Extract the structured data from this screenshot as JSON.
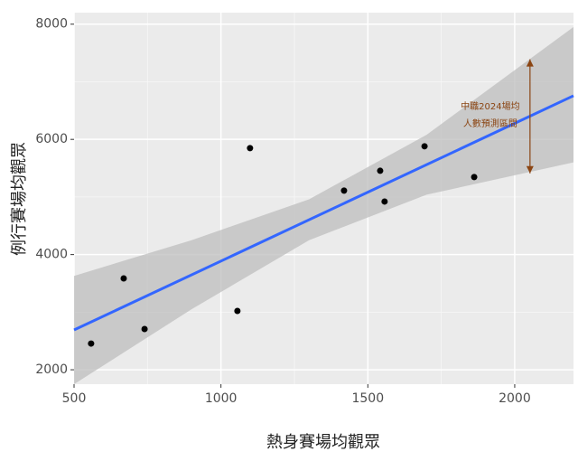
{
  "chart_data": {
    "type": "scatter",
    "x_label": "熱身賽場均觀眾",
    "y_label": "例行賽場均觀眾",
    "x": [
      558,
      669,
      740,
      1056,
      1099,
      1419,
      1542,
      1557,
      1693,
      1862
    ],
    "y": [
      2455,
      3586,
      2707,
      3021,
      5848,
      5110,
      5455,
      4921,
      5880,
      5346
    ],
    "color": "#000000",
    "fit": {
      "x": [
        500,
        2200
      ],
      "y": [
        2691,
        6757
      ],
      "color": "#3366FF"
    },
    "band": {
      "x": [
        500,
        900,
        1300,
        1700,
        2200
      ],
      "lower": [
        1750,
        3050,
        4250,
        5040,
        5600
      ],
      "upper": [
        3630,
        4250,
        4960,
        6080,
        7950
      ],
      "color": "#BEBEBE"
    },
    "annotation": {
      "lines": [
        "中職2024場均",
        "人數預測區間"
      ],
      "x": 2052,
      "y": [
        5410,
        7390
      ],
      "color": "#8B4513"
    },
    "xlim": [
      500,
      2200
    ],
    "ylim": [
      1750,
      8200
    ],
    "xticks": [
      500,
      1000,
      1500,
      2000
    ],
    "yticks": [
      2000,
      4000,
      6000,
      8000
    ],
    "grid": true
  }
}
